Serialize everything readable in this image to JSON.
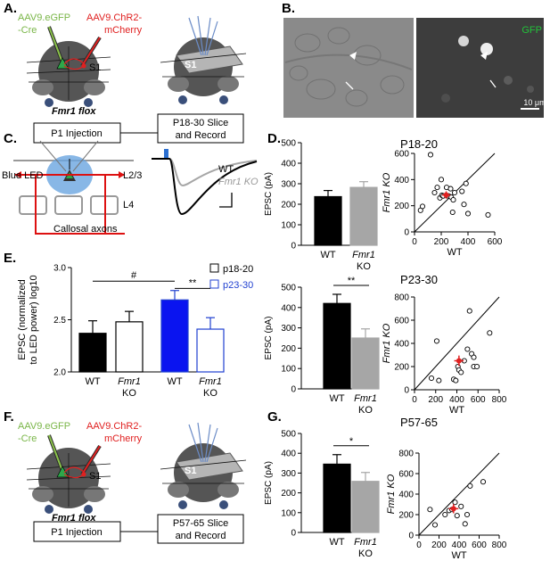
{
  "panels": {
    "A": {
      "label": "A.",
      "virus_green": "AAV9.eGFP\n-Cre",
      "virus_red": "AAV9.ChR2-\nmCherry",
      "region": "S1",
      "genotype": "Fmr1 flox",
      "box1": "P1 Injection",
      "box2": "P18-30 Slice\nand Record"
    },
    "B": {
      "label": "B.",
      "channel": "GFP",
      "scale": "10 μm"
    },
    "C": {
      "label": "C.",
      "led": "Blue LED",
      "layer23": "L2/3",
      "layer4": "L4",
      "axons": "Callosal axons",
      "trace_wt": "WT",
      "trace_ko": "Fmr1 KO"
    },
    "D": {
      "label": "D."
    },
    "E": {
      "label": "E.",
      "ylabel": "EPSC (normalized\nto LED power) log10",
      "sig_hash": "#",
      "sig_star": "**",
      "legend": [
        "p18-20",
        "p23-30"
      ]
    },
    "F": {
      "label": "F.",
      "virus_green": "AAV9.eGFP\n-Cre",
      "virus_red": "AAV9.ChR2-\nmCherry",
      "region": "S1",
      "genotype": "Fmr1 flox",
      "box1": "P1 Injection",
      "box2": "P57-65 Slice\nand Record"
    },
    "G": {
      "label": "G."
    }
  },
  "chart_data": [
    {
      "type": "bar",
      "id": "D1",
      "title": "P18-20",
      "ylabel": "EPSC (pA)",
      "categories": [
        "WT",
        "Fmr1 KO"
      ],
      "values": [
        237,
        282
      ],
      "errors": [
        30,
        28
      ],
      "ylim": [
        0,
        500
      ],
      "yticks": [
        0,
        100,
        200,
        300,
        400,
        500
      ],
      "colors": [
        "#000000",
        "#a6a6a6"
      ],
      "sig": ""
    },
    {
      "type": "scatter",
      "id": "D2",
      "title": "P18-20",
      "xlabel": "WT",
      "ylabel": "Fmr1 KO",
      "xlim": [
        0,
        600
      ],
      "ylim": [
        0,
        600
      ],
      "xticks": [
        0,
        200,
        400,
        600
      ],
      "yticks": [
        0,
        200,
        400,
        600
      ],
      "points": [
        [
          45,
          165
        ],
        [
          60,
          195
        ],
        [
          120,
          590
        ],
        [
          150,
          300
        ],
        [
          170,
          340
        ],
        [
          190,
          260
        ],
        [
          200,
          400
        ],
        [
          205,
          280
        ],
        [
          215,
          275
        ],
        [
          240,
          340
        ],
        [
          255,
          275
        ],
        [
          270,
          330
        ],
        [
          275,
          265
        ],
        [
          285,
          150
        ],
        [
          290,
          245
        ],
        [
          300,
          300
        ],
        [
          355,
          310
        ],
        [
          370,
          210
        ],
        [
          385,
          370
        ],
        [
          400,
          140
        ],
        [
          550,
          130
        ]
      ],
      "mean": [
        237,
        282
      ],
      "mean_err": [
        30,
        28
      ]
    },
    {
      "type": "bar",
      "id": "E",
      "ylabel": "EPSC (normalized\nto LED power) log10",
      "categories": [
        "WT",
        "Fmr1 KO",
        "WT",
        "Fmr1 KO"
      ],
      "series_of": [
        "p18-20",
        "p18-20",
        "p23-30",
        "p23-30"
      ],
      "values": [
        2.37,
        2.48,
        2.69,
        2.41
      ],
      "errors": [
        0.12,
        0.1,
        0.09,
        0.11
      ],
      "ylim": [
        2.0,
        3.0
      ],
      "yticks": [
        2.0,
        2.5,
        3.0
      ],
      "sig": [
        "#",
        "**"
      ]
    },
    {
      "type": "bar",
      "id": "D3",
      "title": "P23-30",
      "ylabel": "EPSC (pA)",
      "categories": [
        "WT",
        "Fmr1 KO"
      ],
      "values": [
        420,
        250
      ],
      "errors": [
        45,
        45
      ],
      "ylim": [
        0,
        500
      ],
      "yticks": [
        0,
        100,
        200,
        300,
        400,
        500
      ],
      "colors": [
        "#000000",
        "#a6a6a6"
      ],
      "sig": "**"
    },
    {
      "type": "scatter",
      "id": "D4",
      "title": "P23-30",
      "xlabel": "WT",
      "ylabel": "Fmr1 KO",
      "xlim": [
        0,
        800
      ],
      "ylim": [
        0,
        800
      ],
      "xticks": [
        0,
        200,
        400,
        600,
        800
      ],
      "yticks": [
        0,
        200,
        400,
        600,
        800
      ],
      "points": [
        [
          160,
          100
        ],
        [
          210,
          420
        ],
        [
          230,
          80
        ],
        [
          370,
          90
        ],
        [
          390,
          80
        ],
        [
          410,
          200
        ],
        [
          420,
          170
        ],
        [
          440,
          150
        ],
        [
          470,
          250
        ],
        [
          500,
          350
        ],
        [
          520,
          680
        ],
        [
          540,
          310
        ],
        [
          560,
          280
        ],
        [
          560,
          200
        ],
        [
          590,
          200
        ],
        [
          710,
          490
        ]
      ],
      "mean": [
        420,
        250
      ],
      "mean_err": [
        45,
        45
      ]
    },
    {
      "type": "bar",
      "id": "G1",
      "title": "P57-65",
      "ylabel": "EPSC (pA)",
      "categories": [
        "WT",
        "Fmr1 KO"
      ],
      "values": [
        345,
        258
      ],
      "errors": [
        48,
        45
      ],
      "ylim": [
        0,
        500
      ],
      "yticks": [
        0,
        100,
        200,
        300,
        400,
        500
      ],
      "colors": [
        "#000000",
        "#a6a6a6"
      ],
      "sig": "*"
    },
    {
      "type": "scatter",
      "id": "G2",
      "title": "P57-65",
      "xlabel": "WT",
      "ylabel": "Fmr1 KO",
      "xlim": [
        0,
        800
      ],
      "ylim": [
        0,
        800
      ],
      "xticks": [
        0,
        200,
        400,
        600,
        800
      ],
      "yticks": [
        0,
        200,
        400,
        600,
        800
      ],
      "points": [
        [
          110,
          250
        ],
        [
          160,
          100
        ],
        [
          260,
          200
        ],
        [
          300,
          240
        ],
        [
          330,
          250
        ],
        [
          360,
          320
        ],
        [
          380,
          190
        ],
        [
          420,
          280
        ],
        [
          460,
          110
        ],
        [
          480,
          200
        ],
        [
          510,
          480
        ],
        [
          640,
          520
        ]
      ],
      "mean": [
        345,
        258
      ],
      "mean_err": [
        48,
        45
      ]
    }
  ]
}
